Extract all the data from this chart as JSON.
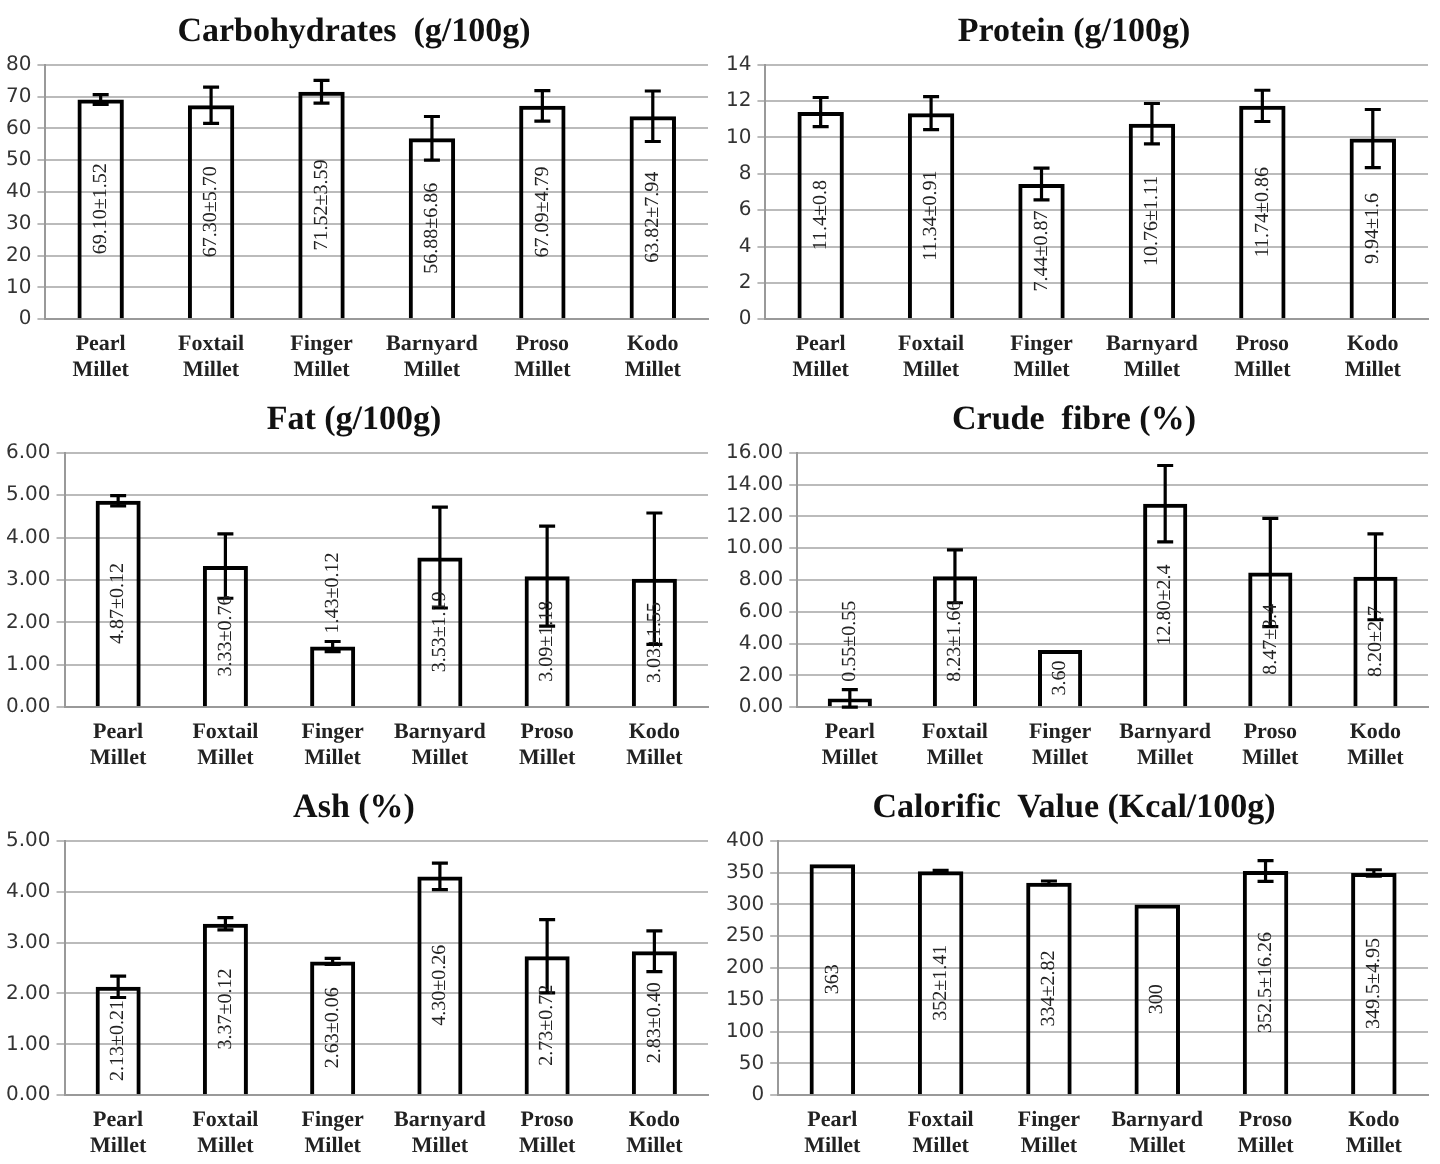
{
  "chart_data": [
    {
      "type": "bar",
      "title": "Carbohydrates  (g/100g)",
      "categories": [
        "Pearl Millet",
        "Foxtail Millet",
        "Finger Millet",
        "Barnyard Millet",
        "Proso Millet",
        "Kodo Millet"
      ],
      "values": [
        69.1,
        67.3,
        71.52,
        56.88,
        67.09,
        63.82
      ],
      "errors": [
        1.52,
        5.7,
        3.59,
        6.86,
        4.79,
        7.94
      ],
      "value_labels": [
        "69.10±1.52",
        "67.30±5.70",
        "71.52±3.59",
        "56.88±6.86",
        "67.09±4.79",
        "63.82±7.94"
      ],
      "color": "#000000",
      "ylim": [
        0,
        80
      ],
      "yticks": [
        0,
        10,
        20,
        30,
        40,
        50,
        60,
        70,
        80
      ],
      "grid": "y",
      "legend": false
    },
    {
      "type": "bar",
      "title": "Protein (g/100g)",
      "categories": [
        "Pearl Millet",
        "Foxtail Millet",
        "Finger Millet",
        "Barnyard Millet",
        "Proso Millet",
        "Kodo Millet"
      ],
      "values": [
        11.4,
        11.34,
        7.44,
        10.76,
        11.74,
        9.94
      ],
      "errors": [
        0.8,
        0.91,
        0.87,
        1.11,
        0.86,
        1.6
      ],
      "value_labels": [
        "11.4±0.8",
        "11.34±0.91",
        "7.44±0.87",
        "10.76±1.11",
        "11.74±0.86",
        "9.94±1.6"
      ],
      "color": "#000000",
      "ylim": [
        0,
        14
      ],
      "yticks": [
        0,
        2,
        4,
        6,
        8,
        10,
        12,
        14
      ],
      "grid": "y",
      "legend": false
    },
    {
      "type": "bar",
      "title": "Fat (g/100g)",
      "categories": [
        "Pearl Millet",
        "Foxtail Millet",
        "Finger Millet",
        "Barnyard Millet",
        "Proso Millet",
        "Kodo Millet"
      ],
      "values": [
        4.87,
        3.33,
        1.43,
        3.53,
        3.09,
        3.03
      ],
      "errors": [
        0.12,
        0.76,
        0.12,
        1.19,
        1.18,
        1.55
      ],
      "value_labels": [
        "4.87±0.12",
        "3.33±0.76",
        "1.43±0.12",
        "3.53±1.19",
        "3.09±1.18",
        "3.03±1.55"
      ],
      "color": "#000000",
      "ylim": [
        0,
        6
      ],
      "yticks": [
        {
          "value": 0,
          "label": "0.00"
        },
        {
          "value": 1,
          "label": "1.00"
        },
        {
          "value": 2,
          "label": "2.00"
        },
        {
          "value": 3,
          "label": "3.00"
        },
        {
          "value": 4,
          "label": "4.00"
        },
        {
          "value": 5,
          "label": "5.00"
        },
        {
          "value": 6,
          "label": "6.00"
        }
      ],
      "grid": "y",
      "legend": false
    },
    {
      "type": "bar",
      "title": "Crude  fibre (%)",
      "categories": [
        "Pearl Millet",
        "Foxtail Millet",
        "Finger Millet",
        "Barnyard Millet",
        "Proso Millet",
        "Kodo Millet"
      ],
      "values": [
        0.55,
        8.23,
        3.6,
        12.8,
        8.47,
        8.2
      ],
      "errors": [
        0.55,
        1.66,
        null,
        2.4,
        3.4,
        2.7
      ],
      "value_labels": [
        "0.55±0.55",
        "8.23±1.66",
        "3.60",
        "12.80±2.4",
        "8.47±3.4",
        "8.20±2.7"
      ],
      "color": "#000000",
      "ylim": [
        0,
        16
      ],
      "yticks": [
        {
          "value": 0,
          "label": "0.00"
        },
        {
          "value": 2,
          "label": "2.00"
        },
        {
          "value": 4,
          "label": "4.00"
        },
        {
          "value": 6,
          "label": "6.00"
        },
        {
          "value": 8,
          "label": "8.00"
        },
        {
          "value": 10,
          "label": "10.00"
        },
        {
          "value": 12,
          "label": "12.00"
        },
        {
          "value": 14,
          "label": "14.00"
        },
        {
          "value": 16,
          "label": "16.00"
        }
      ],
      "grid": "y",
      "legend": false
    },
    {
      "type": "bar",
      "title": "Ash (%)",
      "categories": [
        "Pearl Millet",
        "Foxtail Millet",
        "Finger Millet",
        "Barnyard Millet",
        "Proso Millet",
        "Kodo Millet"
      ],
      "values": [
        2.13,
        3.37,
        2.63,
        4.3,
        2.73,
        2.83
      ],
      "errors": [
        0.21,
        0.12,
        0.06,
        0.26,
        0.72,
        0.4
      ],
      "value_labels": [
        "2.13±0.21",
        "3.37±0.12",
        "2.63±0.06",
        "4.30±0.26",
        "2.73±0.72",
        "2.83±0.40"
      ],
      "color": "#000000",
      "ylim": [
        0,
        5
      ],
      "yticks": [
        {
          "value": 0,
          "label": "0.00"
        },
        {
          "value": 1,
          "label": "1.00"
        },
        {
          "value": 2,
          "label": "2.00"
        },
        {
          "value": 3,
          "label": "3.00"
        },
        {
          "value": 4,
          "label": "4.00"
        },
        {
          "value": 5,
          "label": "5.00"
        }
      ],
      "grid": "y",
      "legend": false
    },
    {
      "type": "bar",
      "title": "Calorific  Value (Kcal/100g)",
      "categories": [
        "Pearl Millet",
        "Foxtail Millet",
        "Finger Millet",
        "Barnyard Millet",
        "Proso Millet",
        "Kodo Millet"
      ],
      "values": [
        363,
        352,
        334,
        300,
        352.5,
        349.5
      ],
      "errors": [
        null,
        1.41,
        2.82,
        null,
        16.26,
        4.95
      ],
      "value_labels": [
        "363",
        "352±1.41",
        "334±2.82",
        "300",
        "352.5±16.26",
        "349.5±4.95"
      ],
      "color": "#000000",
      "ylim": [
        0,
        400
      ],
      "yticks": [
        0,
        50,
        100,
        150,
        200,
        250,
        300,
        350,
        400
      ],
      "grid": "y",
      "legend": false
    }
  ]
}
